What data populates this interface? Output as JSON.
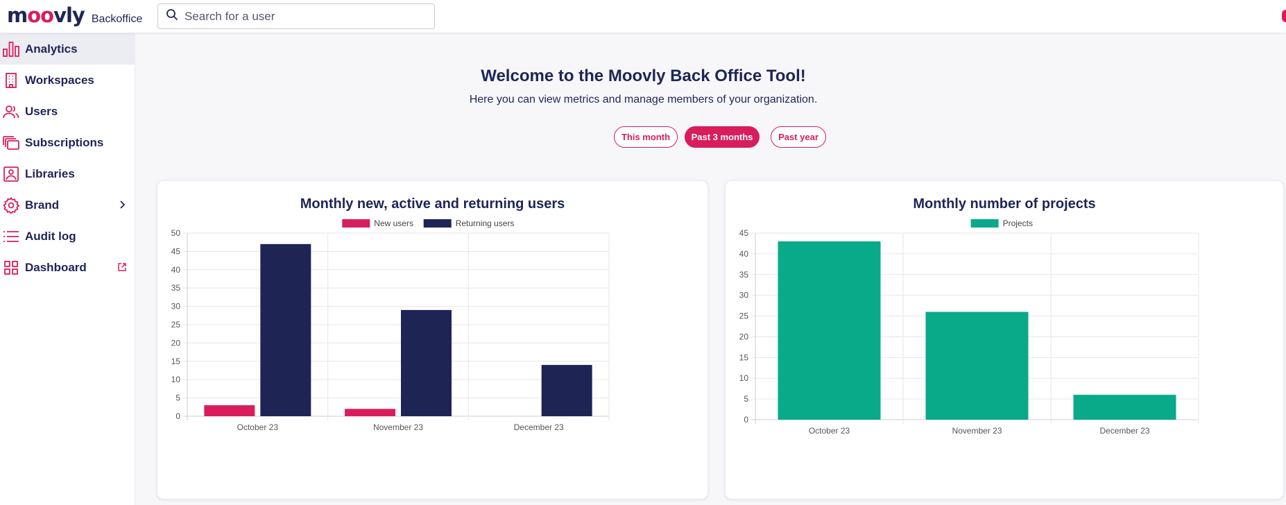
{
  "header": {
    "logo_parts": [
      "m",
      "oo",
      "vly"
    ],
    "logo_sub": "Backoffice",
    "search_placeholder": "Search for a user"
  },
  "sidebar": {
    "items": [
      {
        "label": "Analytics",
        "icon": "bar-chart-icon",
        "active": true
      },
      {
        "label": "Workspaces",
        "icon": "building-icon"
      },
      {
        "label": "Users",
        "icon": "users-icon"
      },
      {
        "label": "Subscriptions",
        "icon": "stacked-cards-icon"
      },
      {
        "label": "Libraries",
        "icon": "image-library-icon"
      },
      {
        "label": "Brand",
        "icon": "gear-icon",
        "trail": "chevron-right-icon"
      },
      {
        "label": "Audit log",
        "icon": "list-icon"
      },
      {
        "label": "Dashboard",
        "icon": "grid-icon",
        "trail": "external-link-icon"
      }
    ]
  },
  "main": {
    "title": "Welcome to the Moovly Back Office Tool!",
    "subtitle": "Here you can view metrics and manage members of your organization.",
    "ranges": [
      {
        "label": "This month",
        "active": false
      },
      {
        "label": "Past 3 months",
        "active": true
      },
      {
        "label": "Past year",
        "active": false
      }
    ]
  },
  "colors": {
    "brand_pink": "#d91d5c",
    "navy": "#1e2555",
    "teal": "#09aa89"
  },
  "chart_data": [
    {
      "type": "bar",
      "title": "Monthly new, active and returning users",
      "categories": [
        "October 23",
        "November 23",
        "December 23"
      ],
      "series": [
        {
          "name": "New users",
          "color": "#d91d5c",
          "values": [
            3,
            2,
            0
          ]
        },
        {
          "name": "Returning users",
          "color": "#1e2555",
          "values": [
            47,
            29,
            14
          ]
        }
      ],
      "ylim": [
        0,
        50
      ],
      "yticks": [
        0,
        5,
        10,
        15,
        20,
        25,
        30,
        35,
        40,
        45,
        50
      ],
      "grid": true,
      "legend": "top"
    },
    {
      "type": "bar",
      "title": "Monthly number of projects",
      "categories": [
        "October 23",
        "November 23",
        "December 23"
      ],
      "series": [
        {
          "name": "Projects",
          "color": "#09aa89",
          "values": [
            43,
            26,
            6
          ]
        }
      ],
      "ylim": [
        0,
        45
      ],
      "yticks": [
        0,
        5,
        10,
        15,
        20,
        25,
        30,
        35,
        40,
        45
      ],
      "grid": true,
      "legend": "top"
    }
  ]
}
